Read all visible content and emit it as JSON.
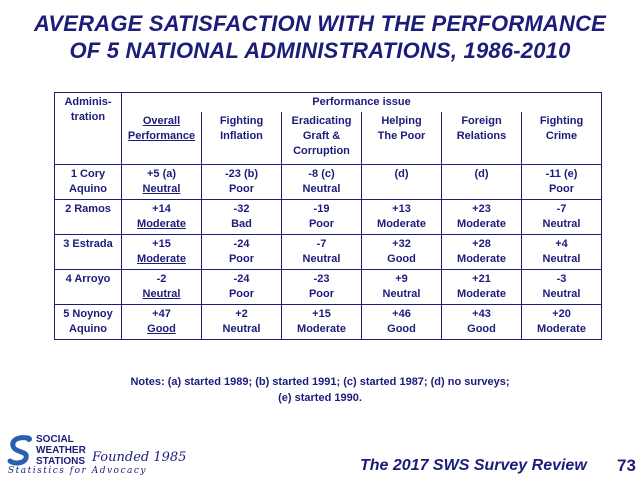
{
  "title_line1": "AVERAGE SATISFACTION WITH THE PERFORMANCE",
  "title_line2": "OF 5 NATIONAL ADMINISTRATIONS, 1986-2010",
  "table": {
    "admin_header_line1": "Adminis-",
    "admin_header_line2": "tration",
    "issue_header": "Performance issue",
    "columns": [
      {
        "l1": "Overall",
        "l2": "Performance",
        "l3": "",
        "underline": true
      },
      {
        "l1": "Fighting",
        "l2": "Inflation",
        "l3": "",
        "underline": false
      },
      {
        "l1": "Eradicating",
        "l2": "Graft &",
        "l3": "Corruption",
        "underline": false
      },
      {
        "l1": "Helping",
        "l2": "The Poor",
        "l3": "",
        "underline": false
      },
      {
        "l1": "Foreign",
        "l2": "Relations",
        "l3": "",
        "underline": false
      },
      {
        "l1": "Fighting",
        "l2": "Crime",
        "l3": "",
        "underline": false
      }
    ],
    "rows": [
      {
        "name1": "1 Cory",
        "name2": "Aquino",
        "cells": [
          {
            "v": "+5 (a)",
            "r": "Neutral"
          },
          {
            "v": "-23 (b)",
            "r": "Poor"
          },
          {
            "v": "-8 (c)",
            "r": "Neutral"
          },
          {
            "v": "(d)",
            "r": ""
          },
          {
            "v": "(d)",
            "r": ""
          },
          {
            "v": "-11 (e)",
            "r": "Poor"
          }
        ]
      },
      {
        "name1": "2 Ramos",
        "name2": "",
        "cells": [
          {
            "v": "+14",
            "r": "Moderate"
          },
          {
            "v": "-32",
            "r": "Bad"
          },
          {
            "v": "-19",
            "r": "Poor"
          },
          {
            "v": "+13",
            "r": "Moderate"
          },
          {
            "v": "+23",
            "r": "Moderate"
          },
          {
            "v": "-7",
            "r": "Neutral"
          }
        ]
      },
      {
        "name1": "3 Estrada",
        "name2": "",
        "cells": [
          {
            "v": "+15",
            "r": "Moderate"
          },
          {
            "v": "-24",
            "r": "Poor"
          },
          {
            "v": "-7",
            "r": "Neutral"
          },
          {
            "v": "+32",
            "r": "Good"
          },
          {
            "v": "+28",
            "r": "Moderate"
          },
          {
            "v": "+4",
            "r": "Neutral"
          }
        ]
      },
      {
        "name1": "4 Arroyo",
        "name2": "",
        "cells": [
          {
            "v": "-2",
            "r": "Neutral"
          },
          {
            "v": "-24",
            "r": "Poor"
          },
          {
            "v": "-23",
            "r": "Poor"
          },
          {
            "v": "+9",
            "r": "Neutral"
          },
          {
            "v": "+21",
            "r": "Moderate"
          },
          {
            "v": "-3",
            "r": "Neutral"
          }
        ]
      },
      {
        "name1": "5 Noynoy",
        "name2": "Aquino",
        "cells": [
          {
            "v": "+47",
            "r": "Good"
          },
          {
            "v": "+2",
            "r": "Neutral"
          },
          {
            "v": "+15",
            "r": "Moderate"
          },
          {
            "v": "+46",
            "r": "Good"
          },
          {
            "v": "+43",
            "r": "Good"
          },
          {
            "v": "+20",
            "r": "Moderate"
          }
        ]
      }
    ]
  },
  "notes_line1": "Notes: (a) started 1989; (b) started 1991; (c) started 1987; (d) no surveys;",
  "notes_line2": "(e) started 1990.",
  "footer": {
    "logo_line1": "SOCIAL",
    "logo_line2": "WEATHER",
    "logo_line3": "STATIONS",
    "founded": "Founded 1985",
    "tagline": "Statistics for Advocacy",
    "review": "The 2017 SWS Survey Review",
    "page": "73"
  },
  "colors": {
    "text": "#1c1c7a",
    "background": "#ffffff",
    "logo_blue": "#2a5fb0"
  }
}
